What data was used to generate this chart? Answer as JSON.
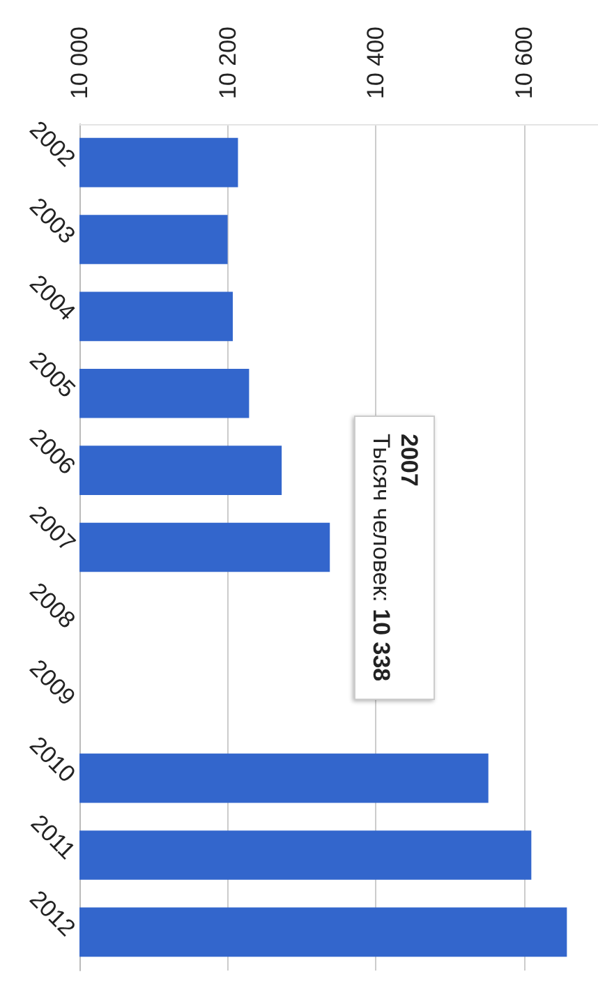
{
  "chart_data": {
    "type": "bar",
    "orientation": "horizontal",
    "categories": [
      "2002",
      "2003",
      "2004",
      "2005",
      "2006",
      "2007",
      "2008",
      "2009",
      "2010",
      "2011",
      "2012"
    ],
    "values": [
      10214,
      10200,
      10207,
      10229,
      10273,
      10338,
      null,
      null,
      10552,
      10610,
      10658
    ],
    "color": "#3366cc",
    "xlim": [
      10000,
      10700
    ],
    "xticks": [
      {
        "value": 10000,
        "label": "10 000"
      },
      {
        "value": 10200,
        "label": "10 200"
      },
      {
        "value": 10400,
        "label": "10 400"
      },
      {
        "value": 10600,
        "label": "10 600"
      }
    ],
    "grid": "x",
    "annotations": [
      {
        "text": "2007\nТысяч человек: 10 338",
        "x": 10338,
        "y": "2007"
      }
    ]
  }
}
